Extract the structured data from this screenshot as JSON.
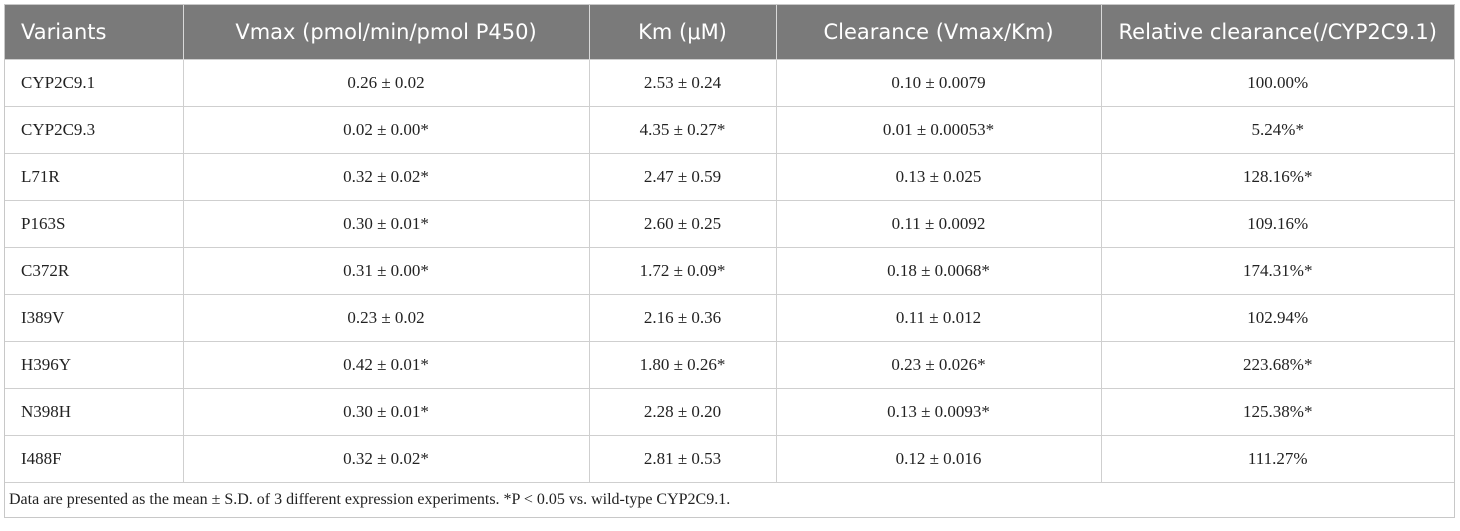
{
  "table": {
    "headers": [
      "Variants",
      "Vmax (pmol/min/pmol P450)",
      "Km (μM)",
      "Clearance (Vmax/Km)",
      "Relative clearance(/CYP2C9.1)"
    ],
    "rows": [
      [
        "CYP2C9.1",
        "0.26 ± 0.02",
        "2.53 ± 0.24",
        "0.10 ± 0.0079",
        "100.00%"
      ],
      [
        "CYP2C9.3",
        "0.02 ± 0.00*",
        "4.35 ± 0.27*",
        "0.01 ± 0.00053*",
        "5.24%*"
      ],
      [
        "L71R",
        "0.32 ± 0.02*",
        "2.47 ± 0.59",
        "0.13 ± 0.025",
        "128.16%*"
      ],
      [
        "P163S",
        "0.30 ± 0.01*",
        "2.60 ± 0.25",
        "0.11 ± 0.0092",
        "109.16%"
      ],
      [
        "C372R",
        "0.31 ± 0.00*",
        "1.72 ± 0.09*",
        "0.18 ± 0.0068*",
        "174.31%*"
      ],
      [
        "I389V",
        "0.23 ± 0.02",
        "2.16 ± 0.36",
        "0.11 ± 0.012",
        "102.94%"
      ],
      [
        "H396Y",
        "0.42 ± 0.01*",
        "1.80 ± 0.26*",
        "0.23 ± 0.026*",
        "223.68%*"
      ],
      [
        "N398H",
        "0.30 ± 0.01*",
        "2.28 ± 0.20",
        "0.13 ± 0.0093*",
        "125.38%*"
      ],
      [
        "I488F",
        "0.32 ± 0.02*",
        "2.81 ± 0.53",
        "0.12 ± 0.016",
        "111.27%"
      ]
    ],
    "footnote": "Data are presented as the mean ± S.D. of 3 different expression experiments. *P < 0.05 vs. wild-type CYP2C9.1."
  },
  "colors": {
    "header_background": "#7a7a7a",
    "header_text": "#ffffff",
    "grid_lines": "#cfcfcf"
  }
}
